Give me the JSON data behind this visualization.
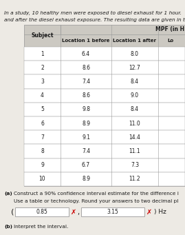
{
  "title_text": "In a study, 10 healthy men were exposed to diesel exhaust for 1 hour.",
  "title_text2": "and after the diesel exhaust exposure. The resulting data are given in t",
  "header_col0": "Subject",
  "header_col1": "Location 1 before",
  "header_col2": "Location 1 after",
  "header_col3": "Lo",
  "header_mpf": "MPF (in H",
  "subjects": [
    1,
    2,
    3,
    4,
    5,
    6,
    7,
    8,
    9,
    10
  ],
  "loc1_before": [
    6.4,
    8.6,
    7.4,
    8.6,
    9.8,
    8.9,
    9.1,
    7.4,
    6.7,
    8.9
  ],
  "loc1_after": [
    8.0,
    12.7,
    8.4,
    9.0,
    8.4,
    11.0,
    14.4,
    11.1,
    7.3,
    11.2
  ],
  "part_a_label": "(a)",
  "part_a_text": "Construct a 90% confidence interval estimate for the difference i",
  "part_a_text2": "Use a table or technology. Round your answers to two decimal pl",
  "val1": "0.85",
  "val2": "3.15",
  "unit": ") Hz",
  "part_b_label": "(b)",
  "part_b_text": "Interpret the interval.",
  "bg_color": "#edeae4",
  "table_bg": "#ffffff",
  "header_bg": "#ccc9c2",
  "border_color": "#999999",
  "text_color": "#1a1a1a",
  "box_bg": "#ffffff",
  "box_border": "#999999",
  "x_color": "#cc0000",
  "link_color": "#5577aa",
  "link_color2": "#5577aa"
}
